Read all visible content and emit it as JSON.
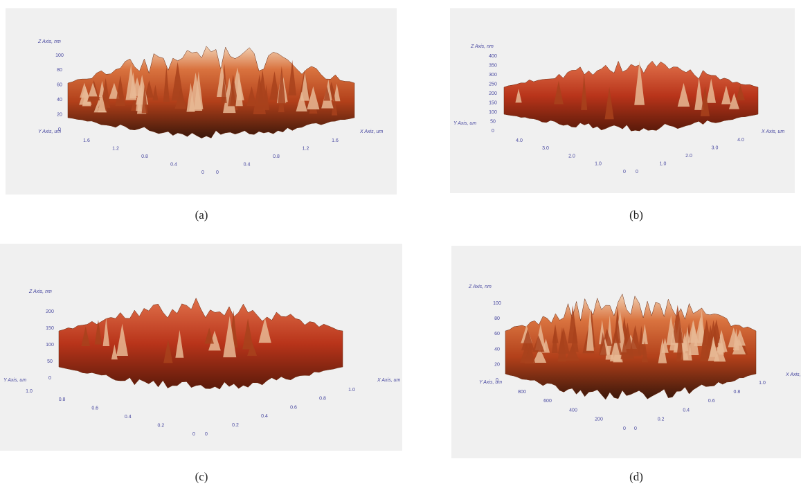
{
  "panels": [
    {
      "caption": "(a)",
      "z_axis_label": "Z Axis, nm",
      "y_axis_label": "Y Axis, um",
      "x_axis_label": "X Axis, um",
      "z_ticks": [
        "100",
        "80",
        "60",
        "40",
        "20",
        "0"
      ],
      "y_ticks": [
        "1.6",
        "1.2",
        "0.8",
        "0.4",
        "0"
      ],
      "x_ticks": [
        "0",
        "0.4",
        "0.8",
        "1.2",
        "1.6"
      ]
    },
    {
      "caption": "(b)",
      "z_axis_label": "Z Axis, nm",
      "y_axis_label": "Y Axis, um",
      "x_axis_label": "X Axis, um",
      "z_ticks": [
        "400",
        "350",
        "300",
        "250",
        "200",
        "150",
        "100",
        "50",
        "0"
      ],
      "y_ticks": [
        "4.0",
        "3.0",
        "2.0",
        "1.0",
        "0"
      ],
      "x_ticks": [
        "0",
        "1.0",
        "2.0",
        "3.0",
        "4.0"
      ]
    },
    {
      "caption": "(c)",
      "z_axis_label": "Z Axis, nm",
      "y_axis_label": "Y Axis, um",
      "x_axis_label": "X Axis, um",
      "z_ticks": [
        "200",
        "150",
        "100",
        "50",
        "0"
      ],
      "y_ticks": [
        "1.0",
        "0.8",
        "0.6",
        "0.4",
        "0.2",
        "0"
      ],
      "x_ticks": [
        "0",
        "0.2",
        "0.4",
        "0.6",
        "0.8",
        "1.0"
      ]
    },
    {
      "caption": "(d)",
      "z_axis_label": "Z Axis, nm",
      "y_axis_label": "Y Axis, um",
      "x_axis_label": "X Axis, um",
      "z_ticks": [
        "100",
        "80",
        "60",
        "40",
        "20",
        "0"
      ],
      "y_ticks": [
        "800",
        "600",
        "400",
        "200",
        "0"
      ],
      "x_ticks": [
        "0",
        "0.2",
        "0.4",
        "0.6",
        "0.8",
        "1.0"
      ]
    }
  ]
}
